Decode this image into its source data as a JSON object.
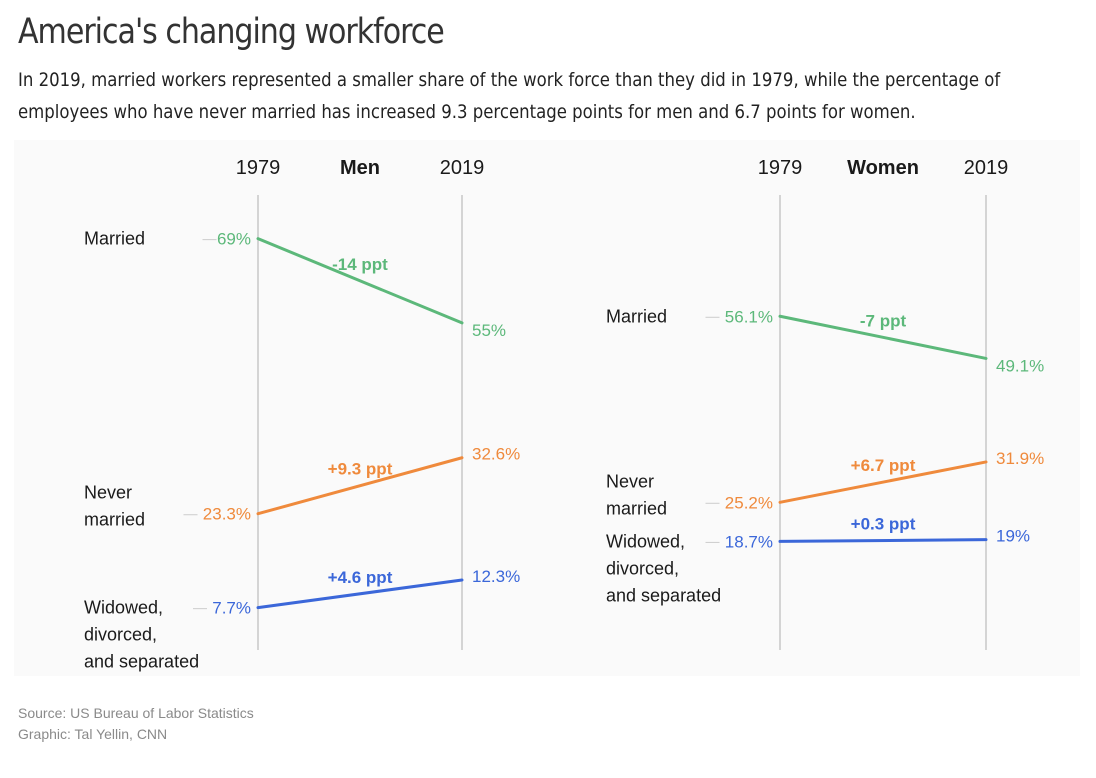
{
  "title": "America's changing workforce",
  "subtitle": "In 2019, married workers represented a smaller share of the work force than they did in 1979, while the percentage of employees who have never married has increased 9.3 percentage points for men and 6.7 points for women.",
  "footer": {
    "source": "Source: US Bureau of Labor Statistics",
    "credit": "Graphic: Tal Yellin, CNN"
  },
  "colors": {
    "married": "#5cb87a",
    "never_married": "#ef8a3c",
    "widowed": "#3b67d9",
    "axis": "#c8c8c8",
    "label": "#1a1a1a",
    "connector": "#cccccc"
  },
  "chart_data": [
    {
      "type": "slope",
      "title": "Men",
      "x": [
        "1979",
        "2019"
      ],
      "series": [
        {
          "name": "Married",
          "name_lines": [
            "Married"
          ],
          "color_key": "married",
          "values": [
            69,
            55
          ],
          "value_labels": [
            "69%",
            "55%"
          ],
          "change_label": "-14 ppt"
        },
        {
          "name": "Never married",
          "name_lines": [
            "Never",
            "married"
          ],
          "color_key": "never_married",
          "values": [
            23.3,
            32.6
          ],
          "value_labels": [
            "23.3%",
            "32.6%"
          ],
          "change_label": "+9.3 ppt"
        },
        {
          "name": "Widowed, divorced, and separated",
          "name_lines": [
            "Widowed,",
            "divorced,",
            "and separated"
          ],
          "color_key": "widowed",
          "values": [
            7.7,
            12.3
          ],
          "value_labels": [
            "7.7%",
            "12.3%"
          ],
          "change_label": "+4.6 ppt"
        }
      ]
    },
    {
      "type": "slope",
      "title": "Women",
      "x": [
        "1979",
        "2019"
      ],
      "series": [
        {
          "name": "Married",
          "name_lines": [
            "Married"
          ],
          "color_key": "married",
          "values": [
            56.1,
            49.1
          ],
          "value_labels": [
            "56.1%",
            "49.1%"
          ],
          "change_label": "-7 ppt"
        },
        {
          "name": "Never married",
          "name_lines": [
            "Never",
            "married"
          ],
          "color_key": "never_married",
          "values": [
            25.2,
            31.9
          ],
          "value_labels": [
            "25.2%",
            "31.9%"
          ],
          "change_label": "+6.7 ppt"
        },
        {
          "name": "Widowed, divorced, and separated",
          "name_lines": [
            "Widowed,",
            "divorced,",
            "and separated"
          ],
          "color_key": "widowed",
          "values": [
            18.7,
            19
          ],
          "value_labels": [
            "18.7%",
            "19%"
          ],
          "change_label": "+0.3 ppt"
        }
      ]
    }
  ]
}
